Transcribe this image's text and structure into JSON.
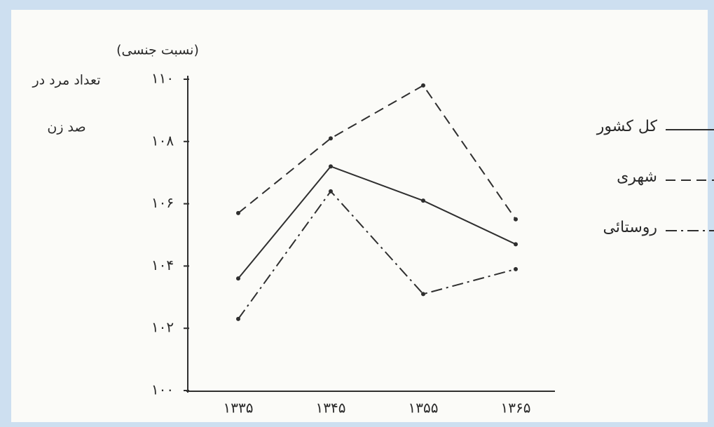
{
  "chart_data": {
    "type": "line",
    "ylabel": [
      "تعداد مرد در",
      "صد زن"
    ],
    "ylabel_note": "(نسبت جنسی)",
    "categories": [
      "۱۳۳۵",
      "۱۳۴۵",
      "۱۳۵۵",
      "۱۳۶۵"
    ],
    "series": [
      {
        "name": "کل کشور",
        "color": "#2f2f2f",
        "dash": "solid",
        "values": [
          103.6,
          107.2,
          106.1,
          104.7
        ]
      },
      {
        "name": "شهری",
        "color": "#2f2f2f",
        "dash": "dashed",
        "values": [
          105.7,
          108.1,
          109.8,
          105.5
        ]
      },
      {
        "name": "روستائی",
        "color": "#2f2f2f",
        "dash": "dashdot",
        "values": [
          102.3,
          106.4,
          103.1,
          103.9
        ]
      }
    ],
    "ylim": [
      100,
      110
    ],
    "yticks": [
      {
        "value": 100,
        "label": "۱۰۰"
      },
      {
        "value": 102,
        "label": "۱۰۲"
      },
      {
        "value": 104,
        "label": "۱۰۴"
      },
      {
        "value": 106,
        "label": "۱۰۶"
      },
      {
        "value": 108,
        "label": "۱۰۸"
      },
      {
        "value": 110,
        "label": "۱۱۰"
      }
    ],
    "legend": "right"
  }
}
